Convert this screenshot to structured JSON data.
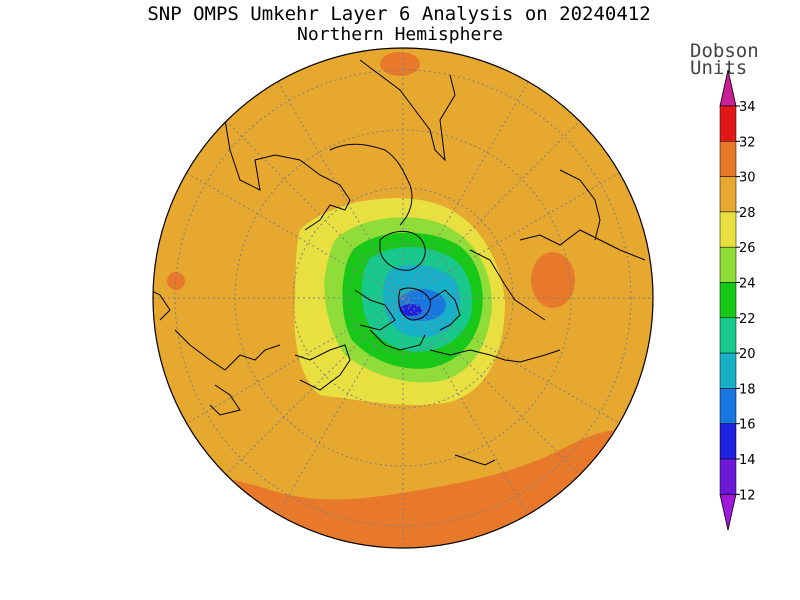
{
  "title": "SNP OMPS Umkehr Layer 6 Analysis on 20240412",
  "subtitle": "Northern Hemisphere",
  "colorbar": {
    "label_line1": "Dobson",
    "label_line2": "Units",
    "ticks": [
      "34",
      "32",
      "30",
      "28",
      "26",
      "24",
      "22",
      "20",
      "18",
      "16",
      "14",
      "12"
    ],
    "colors": [
      "#c81e96",
      "#e01818",
      "#e8782a",
      "#e6a82e",
      "#e8e040",
      "#90dc38",
      "#18c818",
      "#18c88c",
      "#18b0c8",
      "#1878e0",
      "#2020e0",
      "#6c18d8",
      "#a018d8"
    ]
  },
  "map": {
    "projection": "north polar stereographic",
    "background_color": "#e6a82e"
  }
}
